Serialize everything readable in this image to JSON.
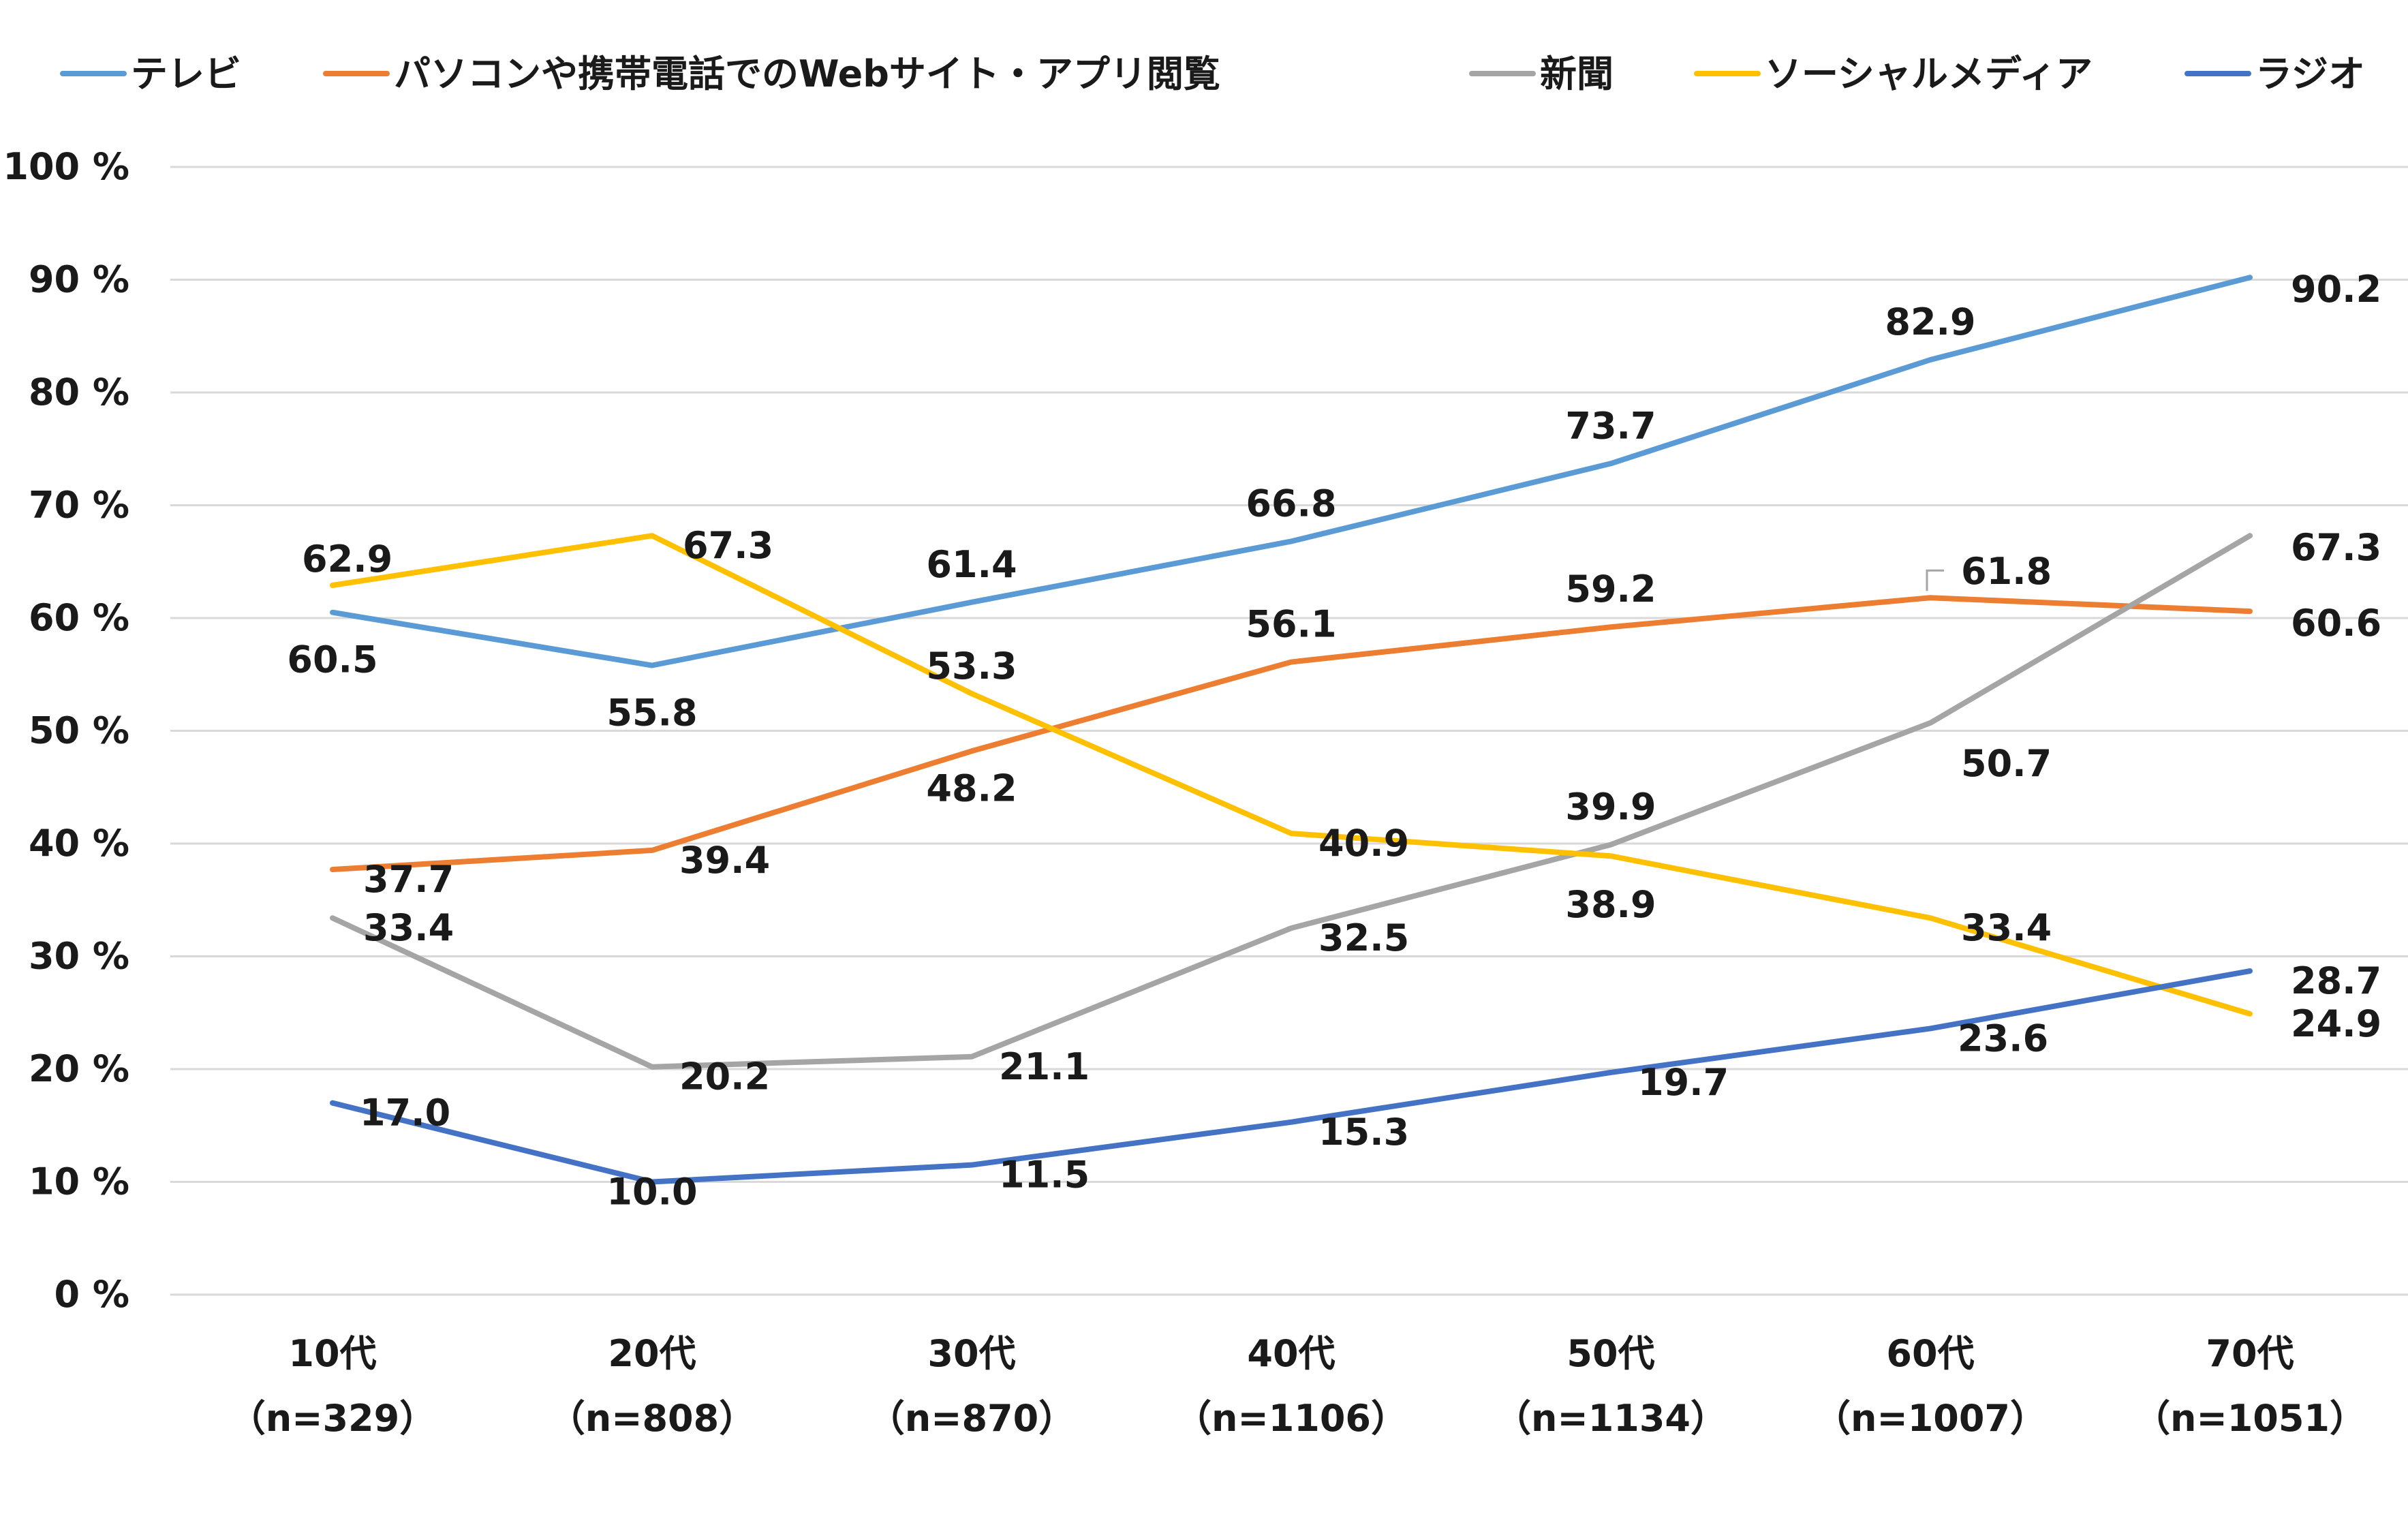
{
  "chart_data": {
    "type": "line",
    "title": "",
    "xlabel": "",
    "ylabel": "",
    "ylim": [
      0,
      100
    ],
    "y_ticks": [
      "0 %",
      "10 %",
      "20 %",
      "30 %",
      "40 %",
      "50 %",
      "60 %",
      "70 %",
      "80 %",
      "90 %",
      "100 %"
    ],
    "grid": true,
    "legend_position": "top",
    "categories": [
      "10代",
      "20代",
      "30代",
      "40代",
      "50代",
      "60代",
      "70代"
    ],
    "category_subs": [
      "（n=329）",
      "（n=808）",
      "（n=870）",
      "（n=1106）",
      "（n=1134）",
      "（n=1007）",
      "（n=1051）"
    ],
    "series": [
      {
        "name": "テレビ",
        "color": "#5b9bd5",
        "values": [
          60.5,
          55.8,
          61.4,
          66.8,
          73.7,
          82.9,
          90.2
        ],
        "labels": [
          "60.5",
          "55.8",
          "61.4",
          "66.8",
          "73.7",
          "82.9",
          "90.2"
        ]
      },
      {
        "name": "パソコンや携帯電話でのWebサイト・アプリ閲覧",
        "color": "#ed7d31",
        "values": [
          37.7,
          39.4,
          48.2,
          56.1,
          59.2,
          61.8,
          60.6
        ],
        "labels": [
          "37.7",
          "39.4",
          "48.2",
          "56.1",
          "59.2",
          "61.8",
          "60.6"
        ]
      },
      {
        "name": "新聞",
        "color": "#a5a5a5",
        "values": [
          33.4,
          20.2,
          21.1,
          32.5,
          39.9,
          50.7,
          67.3
        ],
        "labels": [
          "33.4",
          "20.2",
          "21.1",
          "32.5",
          "39.9",
          "50.7",
          "67.3"
        ]
      },
      {
        "name": "ソーシャルメディア",
        "color": "#ffc000",
        "values": [
          62.9,
          67.3,
          53.3,
          40.9,
          38.9,
          33.4,
          24.9
        ],
        "labels": [
          "62.9",
          "67.3",
          "53.3",
          "40.9",
          "38.9",
          "33.4",
          "24.9"
        ]
      },
      {
        "name": "ラジオ",
        "color": "#4472c4",
        "values": [
          17.0,
          10.0,
          11.5,
          15.3,
          19.7,
          23.6,
          28.7
        ],
        "labels": [
          "17.0",
          "10.0",
          "11.5",
          "15.3",
          "19.7",
          "23.6",
          "28.7"
        ]
      }
    ]
  }
}
